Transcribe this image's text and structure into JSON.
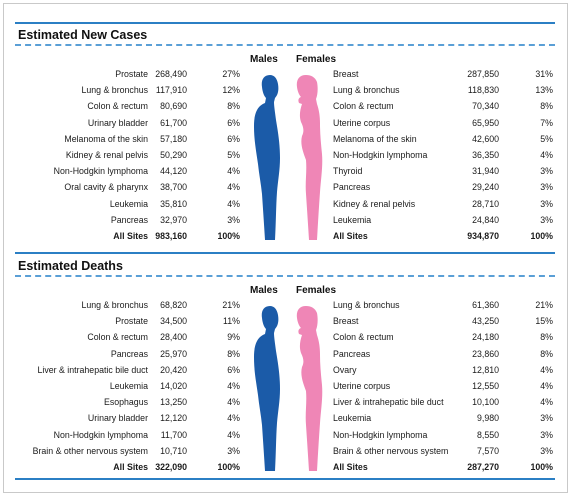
{
  "colors": {
    "accent_blue": "#2b7fc4",
    "male_fill": "#1b5ba8",
    "female_fill": "#ef86b6"
  },
  "new_cases": {
    "title": "Estimated New Cases",
    "males_header": "Males",
    "females_header": "Females",
    "males": [
      {
        "site": "Prostate",
        "count": "268,490",
        "pct": "27%"
      },
      {
        "site": "Lung & bronchus",
        "count": "117,910",
        "pct": "12%"
      },
      {
        "site": "Colon & rectum",
        "count": "80,690",
        "pct": "8%"
      },
      {
        "site": "Urinary bladder",
        "count": "61,700",
        "pct": "6%"
      },
      {
        "site": "Melanoma of the skin",
        "count": "57,180",
        "pct": "6%"
      },
      {
        "site": "Kidney & renal pelvis",
        "count": "50,290",
        "pct": "5%"
      },
      {
        "site": "Non-Hodgkin lymphoma",
        "count": "44,120",
        "pct": "4%"
      },
      {
        "site": "Oral cavity & pharynx",
        "count": "38,700",
        "pct": "4%"
      },
      {
        "site": "Leukemia",
        "count": "35,810",
        "pct": "4%"
      },
      {
        "site": "Pancreas",
        "count": "32,970",
        "pct": "3%"
      }
    ],
    "males_total": {
      "site": "All Sites",
      "count": "983,160",
      "pct": "100%"
    },
    "females": [
      {
        "site": "Breast",
        "count": "287,850",
        "pct": "31%"
      },
      {
        "site": "Lung & bronchus",
        "count": "118,830",
        "pct": "13%"
      },
      {
        "site": "Colon & rectum",
        "count": "70,340",
        "pct": "8%"
      },
      {
        "site": "Uterine corpus",
        "count": "65,950",
        "pct": "7%"
      },
      {
        "site": "Melanoma of the skin",
        "count": "42,600",
        "pct": "5%"
      },
      {
        "site": "Non-Hodgkin lymphoma",
        "count": "36,350",
        "pct": "4%"
      },
      {
        "site": "Thyroid",
        "count": "31,940",
        "pct": "3%"
      },
      {
        "site": "Pancreas",
        "count": "29,240",
        "pct": "3%"
      },
      {
        "site": "Kidney & renal pelvis",
        "count": "28,710",
        "pct": "3%"
      },
      {
        "site": "Leukemia",
        "count": "24,840",
        "pct": "3%"
      }
    ],
    "females_total": {
      "site": "All Sites",
      "count": "934,870",
      "pct": "100%"
    }
  },
  "deaths": {
    "title": "Estimated Deaths",
    "males_header": "Males",
    "females_header": "Females",
    "males": [
      {
        "site": "Lung & bronchus",
        "count": "68,820",
        "pct": "21%"
      },
      {
        "site": "Prostate",
        "count": "34,500",
        "pct": "11%"
      },
      {
        "site": "Colon & rectum",
        "count": "28,400",
        "pct": "9%"
      },
      {
        "site": "Pancreas",
        "count": "25,970",
        "pct": "8%"
      },
      {
        "site": "Liver & intrahepatic bile duct",
        "count": "20,420",
        "pct": "6%"
      },
      {
        "site": "Leukemia",
        "count": "14,020",
        "pct": "4%"
      },
      {
        "site": "Esophagus",
        "count": "13,250",
        "pct": "4%"
      },
      {
        "site": "Urinary bladder",
        "count": "12,120",
        "pct": "4%"
      },
      {
        "site": "Non-Hodgkin lymphoma",
        "count": "11,700",
        "pct": "4%"
      },
      {
        "site": "Brain & other nervous system",
        "count": "10,710",
        "pct": "3%"
      }
    ],
    "males_total": {
      "site": "All Sites",
      "count": "322,090",
      "pct": "100%"
    },
    "females": [
      {
        "site": "Lung & bronchus",
        "count": "61,360",
        "pct": "21%"
      },
      {
        "site": "Breast",
        "count": "43,250",
        "pct": "15%"
      },
      {
        "site": "Colon & rectum",
        "count": "24,180",
        "pct": "8%"
      },
      {
        "site": "Pancreas",
        "count": "23,860",
        "pct": "8%"
      },
      {
        "site": "Ovary",
        "count": "12,810",
        "pct": "4%"
      },
      {
        "site": "Uterine corpus",
        "count": "12,550",
        "pct": "4%"
      },
      {
        "site": "Liver & intrahepatic bile duct",
        "count": "10,100",
        "pct": "4%"
      },
      {
        "site": "Leukemia",
        "count": "9,980",
        "pct": "3%"
      },
      {
        "site": "Non-Hodgkin lymphoma",
        "count": "8,550",
        "pct": "3%"
      },
      {
        "site": "Brain & other nervous system",
        "count": "7,570",
        "pct": "3%"
      }
    ],
    "females_total": {
      "site": "All Sites",
      "count": "287,270",
      "pct": "100%"
    }
  }
}
